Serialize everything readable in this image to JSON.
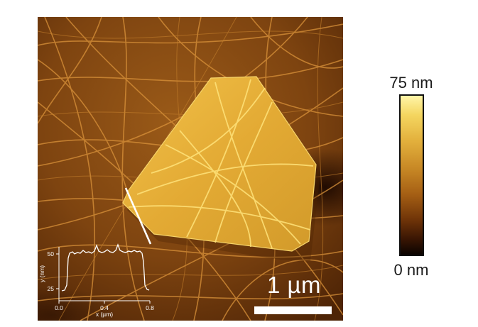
{
  "scale_bar": {
    "label": "1 µm"
  },
  "colorbar": {
    "max_label": "75 nm",
    "min_label": "0 nm",
    "colors": [
      "#fff5a8",
      "#f4d660",
      "#c98a26",
      "#6f3408",
      "#0b0300"
    ]
  },
  "inset": {
    "xlabel": "x (µm)",
    "ylabel": "y (nm)",
    "xticks": [
      "0.0",
      "0.4",
      "0.8"
    ],
    "yticks": [
      "25",
      "50"
    ]
  }
}
